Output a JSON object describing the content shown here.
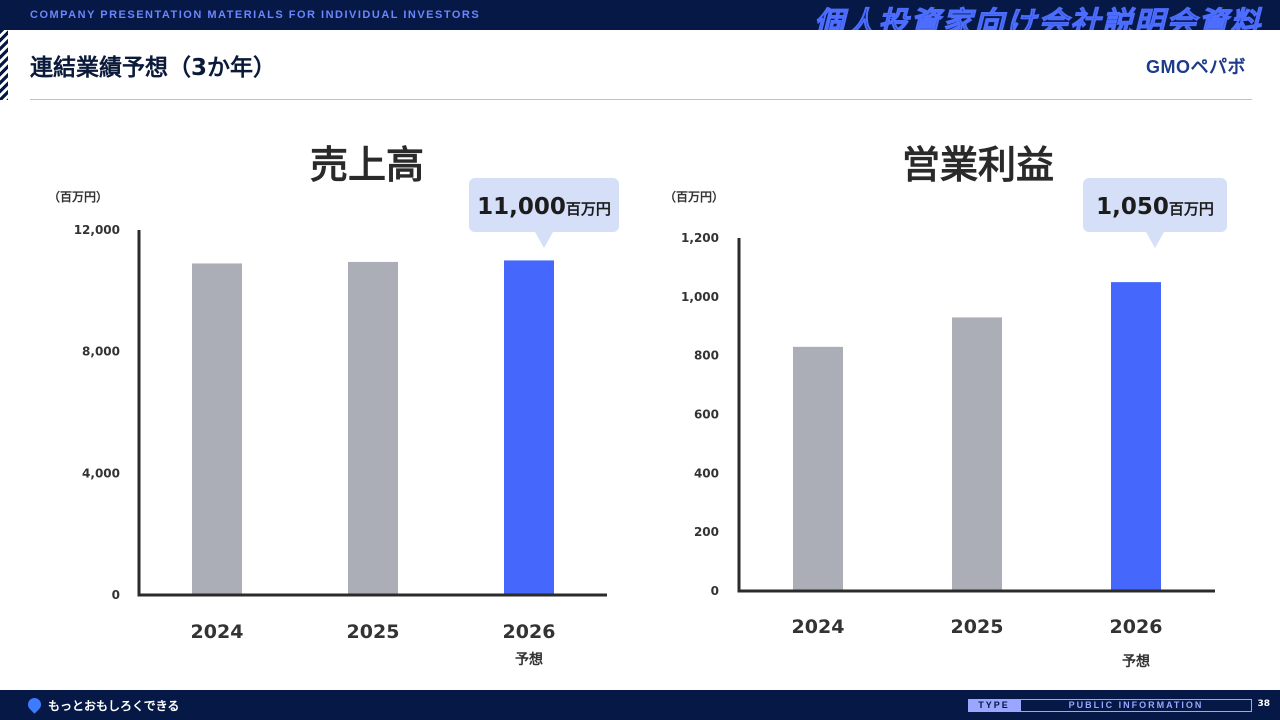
{
  "header": {
    "tagline": "COMPANY PRESENTATION MATERIALS FOR INDIVIDUAL INVESTORS",
    "deck_title": "個人投資家向け会社説明会資料"
  },
  "page": {
    "title": "連結業績予想（3か年）",
    "logo": "GMOペパボ"
  },
  "footer": {
    "slogan": "もっとおもしろくできる",
    "type_label": "TYPE",
    "type_value": "PUBLIC INFORMATION",
    "page_number": "38"
  },
  "colors": {
    "actual_bar": "#abaeb6",
    "forecast_bar": "#4567fc",
    "callout_bg": "#d5dff8",
    "axis": "#2b2b2b",
    "navy": "#061845"
  },
  "chart_data": [
    {
      "type": "bar",
      "title": "売上高",
      "unit_label": "（百万円）",
      "categories": [
        "2024",
        "2025",
        "2026"
      ],
      "category_notes": [
        "",
        "",
        "予想"
      ],
      "values": [
        10900,
        10950,
        11000
      ],
      "forecast": [
        false,
        false,
        true
      ],
      "ylim": [
        0,
        12000
      ],
      "yticks": [
        0,
        4000,
        8000,
        12000
      ],
      "ytick_labels": [
        "0",
        "4,000",
        "8,000",
        "12,000"
      ],
      "callout": {
        "value": "11,000",
        "unit": "百万円"
      },
      "grid": false
    },
    {
      "type": "bar",
      "title": "営業利益",
      "unit_label": "（百万円）",
      "categories": [
        "2024",
        "2025",
        "2026"
      ],
      "category_notes": [
        "",
        "",
        "予想"
      ],
      "values": [
        830,
        930,
        1050
      ],
      "forecast": [
        false,
        false,
        true
      ],
      "ylim": [
        0,
        1200
      ],
      "yticks": [
        0,
        200,
        400,
        600,
        800,
        1000,
        1200
      ],
      "ytick_labels": [
        "0",
        "200",
        "400",
        "600",
        "800",
        "1,000",
        "1,200"
      ],
      "callout": {
        "value": "1,050",
        "unit": "百万円"
      },
      "grid": false
    }
  ]
}
